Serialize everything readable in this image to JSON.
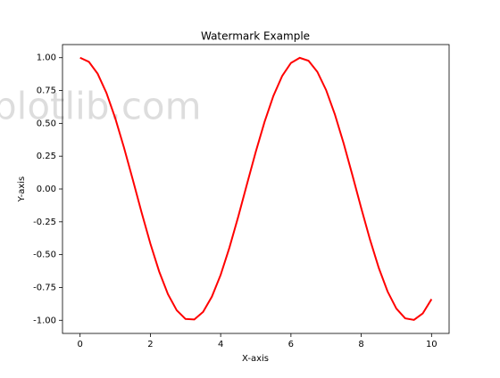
{
  "chart_data": {
    "type": "line",
    "title": "Watermark Example",
    "xlabel": "X-axis",
    "ylabel": "Y-axis",
    "watermark": "plotlib.com",
    "x": [
      0,
      0.25,
      0.5,
      0.75,
      1,
      1.25,
      1.5,
      1.75,
      2,
      2.25,
      2.5,
      2.75,
      3,
      3.25,
      3.5,
      3.75,
      4,
      4.25,
      4.5,
      4.75,
      5,
      5.25,
      5.5,
      5.75,
      6,
      6.25,
      6.5,
      6.75,
      7,
      7.25,
      7.5,
      7.75,
      8,
      8.25,
      8.5,
      8.75,
      9,
      9.25,
      9.5,
      9.75,
      10
    ],
    "series": [
      {
        "color": "#ff0000",
        "values": [
          1,
          0.969,
          0.878,
          0.732,
          0.54,
          0.315,
          0.071,
          -0.178,
          -0.416,
          -0.628,
          -0.801,
          -0.924,
          -0.99,
          -0.994,
          -0.936,
          -0.82,
          -0.654,
          -0.446,
          -0.211,
          0.038,
          0.284,
          0.512,
          0.709,
          0.861,
          0.96,
          0.999,
          0.977,
          0.893,
          0.754,
          0.568,
          0.347,
          0.104,
          -0.146,
          -0.386,
          -0.602,
          -0.781,
          -0.911,
          -0.985,
          -0.997,
          -0.948,
          -0.839
        ]
      }
    ],
    "xlim": [
      -0.5,
      10.5
    ],
    "ylim": [
      -1.1,
      1.1
    ],
    "xticks": [
      0,
      2,
      4,
      6,
      8,
      10
    ],
    "yticks": [
      {
        "value": -1,
        "label": "-1.00"
      },
      {
        "value": -0.75,
        "label": "-0.75"
      },
      {
        "value": -0.5,
        "label": "-0.50"
      },
      {
        "value": -0.25,
        "label": "-0.25"
      },
      {
        "value": 0,
        "label": "0.00"
      },
      {
        "value": 0.25,
        "label": "0.25"
      },
      {
        "value": 0.5,
        "label": "0.50"
      },
      {
        "value": 0.75,
        "label": "0.75"
      },
      {
        "value": 1,
        "label": "1.00"
      }
    ]
  }
}
